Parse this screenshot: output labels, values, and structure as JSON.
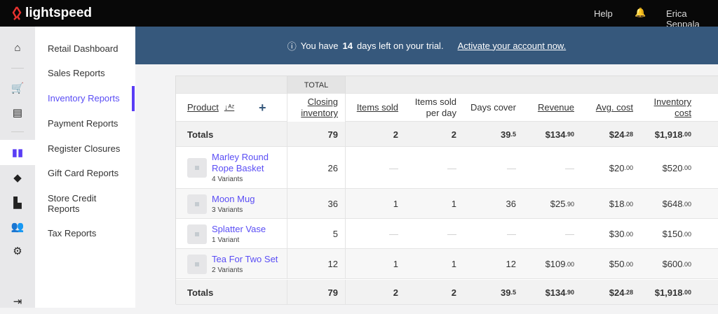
{
  "header": {
    "brand": "lightspeed",
    "help": "Help",
    "user": "Erica Seppala"
  },
  "sidebar": {
    "items": [
      {
        "label": "Retail Dashboard"
      },
      {
        "label": "Sales Reports"
      },
      {
        "label": "Inventory Reports"
      },
      {
        "label": "Payment Reports"
      },
      {
        "label": "Register Closures"
      },
      {
        "label": "Gift Card Reports"
      },
      {
        "label": "Store Credit Reports"
      },
      {
        "label": "Tax Reports"
      }
    ],
    "active": "Inventory Reports"
  },
  "banner": {
    "pre": "You have",
    "days": "14",
    "post": "days left on your trial.",
    "link": "Activate your account now."
  },
  "table": {
    "group_label": "TOTAL",
    "columns": [
      "Product",
      "Closing inventory",
      "Items sold",
      "Items sold per day",
      "Days cover",
      "Revenue",
      "Avg. cost",
      "Inventory cost"
    ],
    "totals": {
      "label": "Totals",
      "cells": [
        [
          "79",
          ""
        ],
        [
          "2",
          ""
        ],
        [
          "2",
          ""
        ],
        [
          "39",
          ".5"
        ],
        [
          "$134",
          ".90"
        ],
        [
          "$24",
          ".28"
        ],
        [
          "$1,918",
          ".00"
        ]
      ]
    },
    "rows": [
      {
        "name": "Marley Round Rope Basket",
        "variants": "4 Variants",
        "cells": [
          [
            "26",
            ""
          ],
          [
            "—",
            ""
          ],
          [
            "—",
            ""
          ],
          [
            "—",
            ""
          ],
          [
            "—",
            ""
          ],
          [
            "$20",
            ".00"
          ],
          [
            "$520",
            ".00"
          ]
        ]
      },
      {
        "name": "Moon Mug",
        "variants": "3 Variants",
        "cells": [
          [
            "36",
            ""
          ],
          [
            "1",
            ""
          ],
          [
            "1",
            ""
          ],
          [
            "36",
            ""
          ],
          [
            "$25",
            ".90"
          ],
          [
            "$18",
            ".00"
          ],
          [
            "$648",
            ".00"
          ]
        ]
      },
      {
        "name": "Splatter Vase",
        "variants": "1 Variant",
        "cells": [
          [
            "5",
            ""
          ],
          [
            "—",
            ""
          ],
          [
            "—",
            ""
          ],
          [
            "—",
            ""
          ],
          [
            "—",
            ""
          ],
          [
            "$30",
            ".00"
          ],
          [
            "$150",
            ".00"
          ]
        ]
      },
      {
        "name": "Tea For Two Set",
        "variants": "2 Variants",
        "cells": [
          [
            "12",
            ""
          ],
          [
            "1",
            ""
          ],
          [
            "1",
            ""
          ],
          [
            "12",
            ""
          ],
          [
            "$109",
            ".00"
          ],
          [
            "$50",
            ".00"
          ],
          [
            "$600",
            ".00"
          ]
        ]
      }
    ]
  },
  "colors": {
    "accent": "#5a3df5",
    "banner": "#36587c",
    "logo": "#e8322f"
  }
}
